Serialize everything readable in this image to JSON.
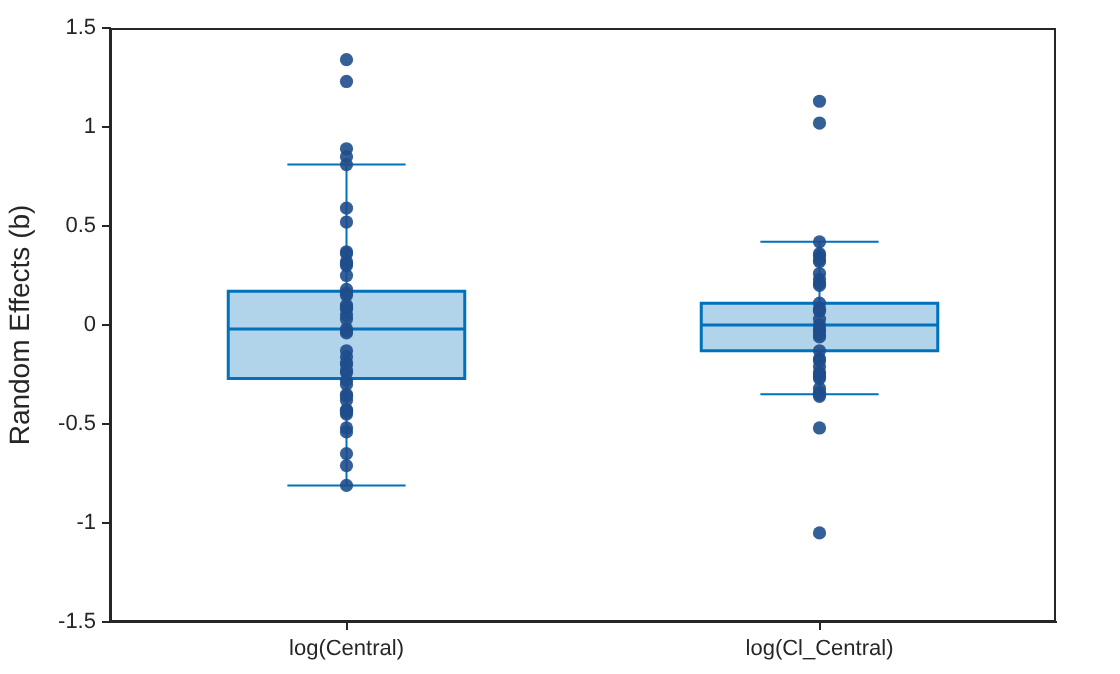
{
  "chart_data": {
    "type": "box",
    "ylabel": "Random Effects (b)",
    "categories": [
      "log(Central)",
      "log(Cl_Central)"
    ],
    "ylim": [
      -1.5,
      1.5
    ],
    "yticks": [
      -1.5,
      -1,
      -0.5,
      0,
      0.5,
      1,
      1.5
    ],
    "boxes": [
      {
        "low": -0.81,
        "q1": -0.27,
        "median": -0.02,
        "q3": 0.17,
        "high": 0.81
      },
      {
        "low": -0.35,
        "q1": -0.13,
        "median": 0.0,
        "q3": 0.11,
        "high": 0.42
      }
    ],
    "color": "#0072bd",
    "grid": false,
    "legend": false,
    "marker": "circle",
    "series": [
      {
        "type": "scatter",
        "color": "#1f4e8c",
        "x": [
          "log(Central)",
          "log(Central)",
          "log(Central)",
          "log(Central)",
          "log(Central)",
          "log(Central)",
          "log(Central)",
          "log(Central)",
          "log(Central)",
          "log(Central)",
          "log(Central)",
          "log(Central)",
          "log(Central)",
          "log(Central)",
          "log(Central)",
          "log(Central)",
          "log(Central)",
          "log(Central)",
          "log(Central)",
          "log(Central)",
          "log(Central)",
          "log(Central)",
          "log(Central)",
          "log(Central)",
          "log(Central)",
          "log(Central)",
          "log(Central)",
          "log(Central)",
          "log(Central)",
          "log(Central)",
          "log(Central)",
          "log(Central)",
          "log(Central)",
          "log(Central)",
          "log(Central)",
          "log(Central)",
          "log(Central)",
          "log(Central)",
          "log(Central)",
          "log(Central)",
          "log(Central)",
          "log(Central)",
          "log(Central)",
          "log(Central)",
          "log(Cl_Central)",
          "log(Cl_Central)",
          "log(Cl_Central)",
          "log(Cl_Central)",
          "log(Cl_Central)",
          "log(Cl_Central)",
          "log(Cl_Central)",
          "log(Cl_Central)",
          "log(Cl_Central)",
          "log(Cl_Central)",
          "log(Cl_Central)",
          "log(Cl_Central)",
          "log(Cl_Central)",
          "log(Cl_Central)",
          "log(Cl_Central)",
          "log(Cl_Central)",
          "log(Cl_Central)",
          "log(Cl_Central)",
          "log(Cl_Central)",
          "log(Cl_Central)",
          "log(Cl_Central)",
          "log(Cl_Central)",
          "log(Cl_Central)",
          "log(Cl_Central)",
          "log(Cl_Central)",
          "log(Cl_Central)",
          "log(Cl_Central)",
          "log(Cl_Central)",
          "log(Cl_Central)",
          "log(Cl_Central)",
          "log(Cl_Central)",
          "log(Cl_Central)",
          "log(Cl_Central)",
          "log(Cl_Central)"
        ],
        "values": [
          1.34,
          1.23,
          0.89,
          0.85,
          0.81,
          0.59,
          0.52,
          0.36,
          0.37,
          0.32,
          0.31,
          0.3,
          0.25,
          0.18,
          0.16,
          0.15,
          0.09,
          0.1,
          0.08,
          0.05,
          0.03,
          -0.04,
          -0.03,
          -0.02,
          -0.16,
          -0.13,
          -0.19,
          -0.2,
          -0.23,
          -0.24,
          -0.28,
          -0.3,
          -0.35,
          -0.36,
          -0.38,
          -0.43,
          -0.45,
          -0.43,
          -0.44,
          -0.52,
          -0.54,
          -0.65,
          -0.71,
          -0.81,
          1.13,
          1.02,
          0.42,
          0.36,
          0.35,
          0.33,
          0.32,
          0.26,
          0.23,
          0.21,
          0.2,
          0.11,
          0.08,
          0.07,
          0.03,
          0.0,
          -0.03,
          -0.02,
          -0.06,
          -0.05,
          -0.13,
          -0.17,
          -0.18,
          -0.21,
          -0.24,
          -0.25,
          -0.26,
          -0.27,
          -0.32,
          -0.36,
          -0.35,
          -0.34,
          -0.52,
          -1.05
        ]
      }
    ]
  }
}
